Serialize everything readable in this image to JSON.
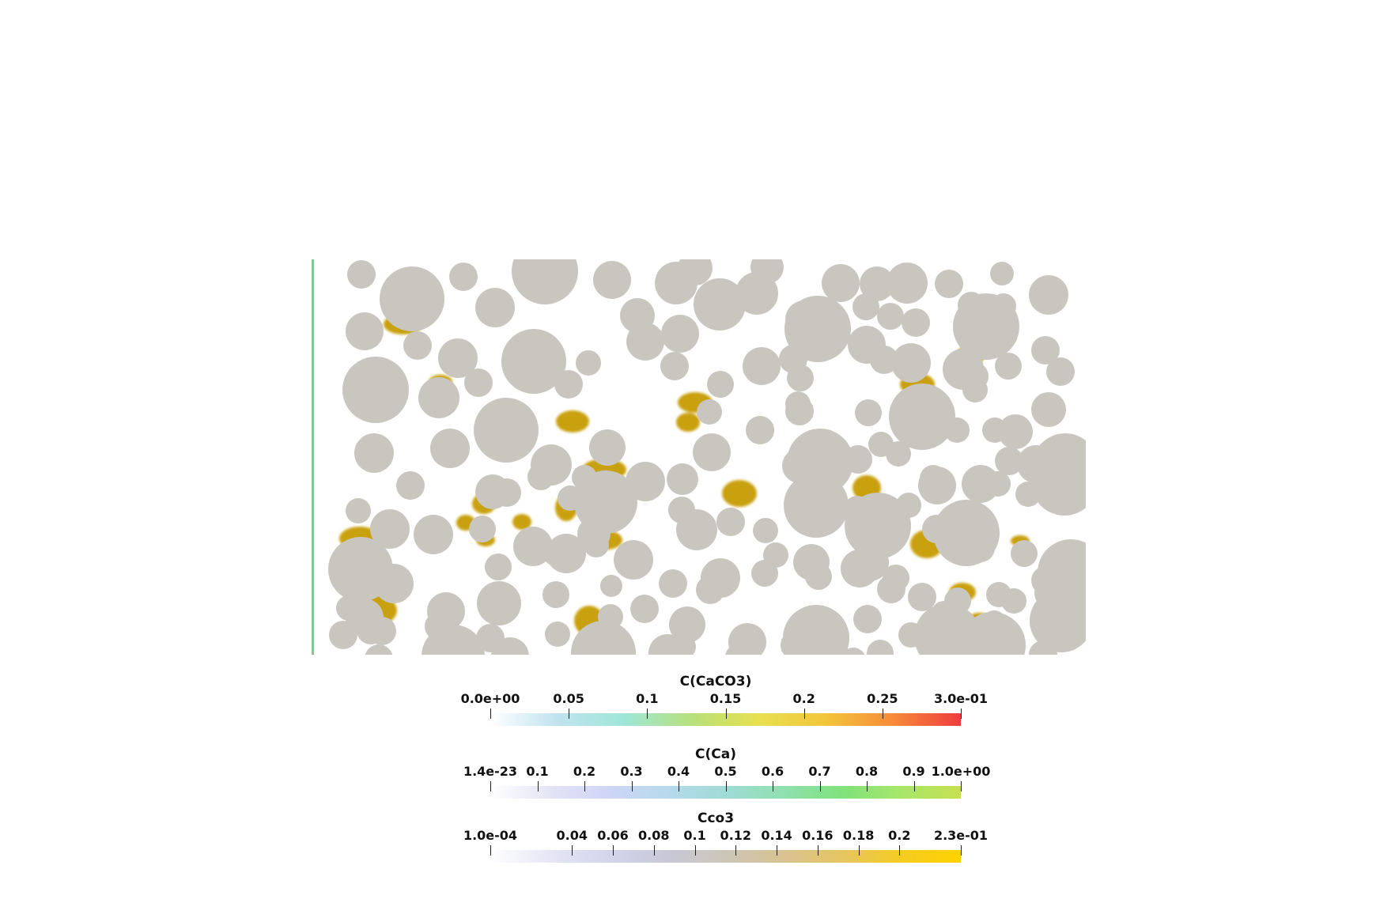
{
  "scene": {
    "grain_color": "#c8c6be",
    "precipitate_color": "#c9a00a",
    "boundary_color": "#8fc08f"
  },
  "legends": [
    {
      "title": "C(CaCO3)",
      "ticks": [
        "0.0e+00",
        "0.05",
        "0.1",
        "0.15",
        "0.2",
        "0.25",
        "3.0e-01"
      ],
      "tick_values": [
        0,
        0.05,
        0.1,
        0.15,
        0.2,
        0.25,
        0.3
      ],
      "range": [
        0,
        0.3
      ],
      "colors": [
        "#ffffff",
        "#bfe3ef",
        "#9fe6d8",
        "#b8e07a",
        "#e8e050",
        "#f3c53a",
        "#f78a3a",
        "#ef3c3c"
      ]
    },
    {
      "title": "C(Ca)",
      "ticks": [
        "1.4e-23",
        "0.1",
        "0.2",
        "0.3",
        "0.4",
        "0.5",
        "0.6",
        "0.7",
        "0.8",
        "0.9",
        "1.0e+00"
      ],
      "tick_values": [
        0,
        0.1,
        0.2,
        0.3,
        0.4,
        0.5,
        0.6,
        0.7,
        0.8,
        0.9,
        1.0
      ],
      "range": [
        0,
        1.0
      ],
      "colors": [
        "#ffffff",
        "#e4e4f6",
        "#cfd5f5",
        "#b6d9ec",
        "#9fdbd5",
        "#8fe0b0",
        "#80e27a",
        "#a8e66a",
        "#c8e050"
      ]
    },
    {
      "title": "Cco3",
      "ticks": [
        "1.0e-04",
        "0.04",
        "0.06",
        "0.08",
        "0.1",
        "0.12",
        "0.14",
        "0.16",
        "0.18",
        "0.2",
        "2.3e-01"
      ],
      "tick_values": [
        0.0001,
        0.04,
        0.06,
        0.08,
        0.1,
        0.12,
        0.14,
        0.16,
        0.18,
        0.2,
        0.23
      ],
      "range": [
        0.0001,
        0.23
      ],
      "colors": [
        "#ffffff",
        "#e6e6f6",
        "#d4d4ec",
        "#c8c8d8",
        "#ccc6b8",
        "#d8c290",
        "#e6c660",
        "#f6cc20",
        "#ffd200"
      ]
    }
  ]
}
